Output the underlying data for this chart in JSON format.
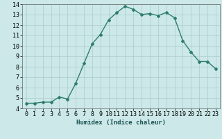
{
  "x": [
    0,
    1,
    2,
    3,
    4,
    5,
    6,
    7,
    8,
    9,
    10,
    11,
    12,
    13,
    14,
    15,
    16,
    17,
    18,
    19,
    20,
    21,
    22,
    23
  ],
  "y": [
    4.5,
    4.5,
    4.6,
    4.6,
    5.1,
    4.9,
    6.4,
    8.3,
    10.2,
    11.1,
    12.5,
    13.2,
    13.8,
    13.5,
    13.0,
    13.1,
    12.9,
    13.2,
    12.7,
    10.5,
    9.4,
    8.5,
    8.5,
    7.8
  ],
  "line_color": "#2e7d6e",
  "marker": "D",
  "marker_size": 2.0,
  "bg_color": "#cce8e8",
  "grid_color": "#aacccc",
  "xlabel": "Humidex (Indice chaleur)",
  "xlim": [
    -0.5,
    23.5
  ],
  "ylim": [
    4,
    14
  ],
  "yticks": [
    4,
    5,
    6,
    7,
    8,
    9,
    10,
    11,
    12,
    13,
    14
  ],
  "xticks": [
    0,
    1,
    2,
    3,
    4,
    5,
    6,
    7,
    8,
    9,
    10,
    11,
    12,
    13,
    14,
    15,
    16,
    17,
    18,
    19,
    20,
    21,
    22,
    23
  ],
  "xlabel_fontsize": 6.5,
  "tick_fontsize": 6.0,
  "line_width": 1.0
}
